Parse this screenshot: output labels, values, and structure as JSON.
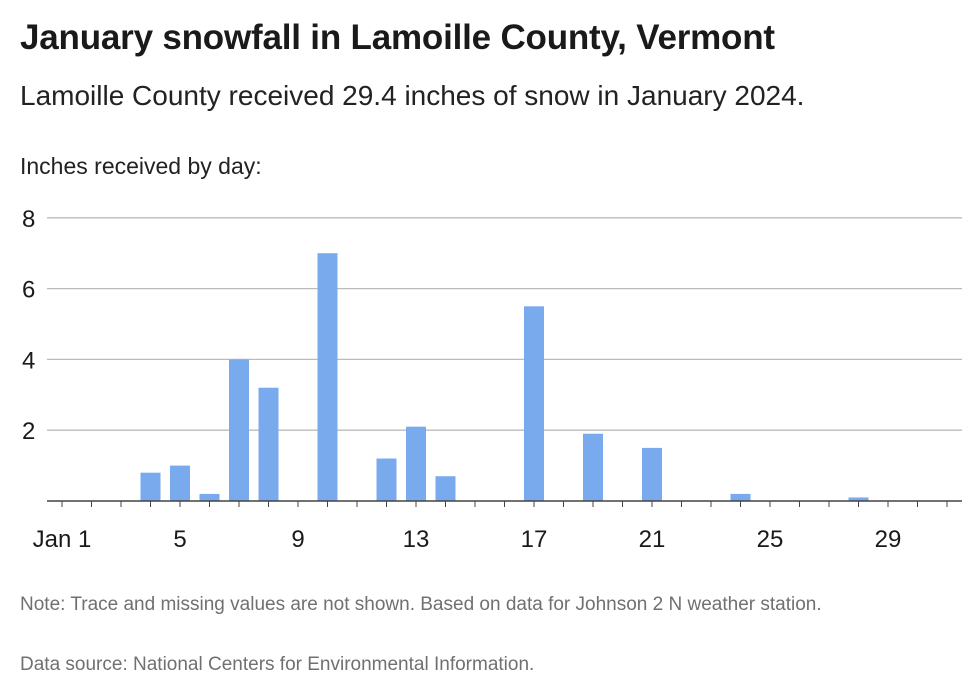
{
  "title": "January snowfall in Lamoille County, Vermont",
  "subtitle": "Lamoille County received 29.4 inches of snow in January 2024.",
  "ylabel": "Inches received by day:",
  "note": "Note: Trace and missing values are not shown. Based on data for Johnson 2 N weather station.",
  "source": "Data source: National Centers for Environmental Information.",
  "colors": {
    "bar": "#7aaaee",
    "grid": "#bbbbbb",
    "axis": "#444444"
  },
  "chart_data": {
    "type": "bar",
    "x": [
      4,
      5,
      6,
      7,
      8,
      10,
      12,
      13,
      14,
      17,
      19,
      21,
      24,
      28
    ],
    "values": [
      0.8,
      1.0,
      0.2,
      4.0,
      3.2,
      7.0,
      1.2,
      2.1,
      0.7,
      5.5,
      1.9,
      1.5,
      0.2,
      0.1
    ],
    "xlim": [
      1,
      31
    ],
    "ylim": [
      0,
      8
    ],
    "yticks": [
      2,
      4,
      6,
      8
    ],
    "ytick_labels": [
      "2",
      "4",
      "6",
      "8"
    ],
    "xticks": [
      1,
      5,
      9,
      13,
      17,
      21,
      25,
      29
    ],
    "xtick_labels": [
      "Jan 1",
      "5",
      "9",
      "13",
      "17",
      "21",
      "25",
      "29"
    ],
    "grid": true
  }
}
